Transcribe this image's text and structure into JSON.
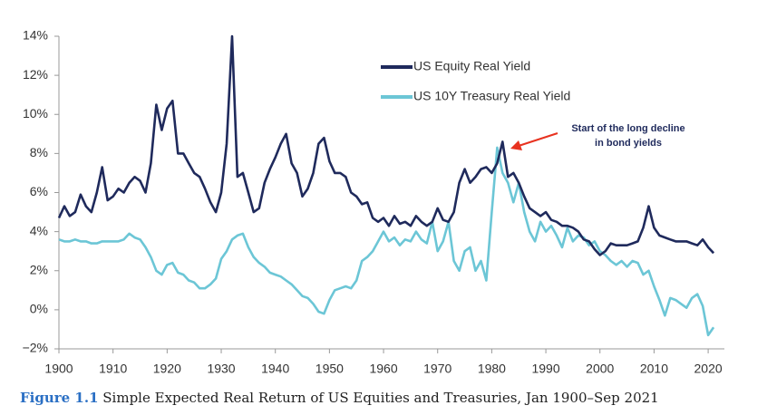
{
  "chart_data": {
    "type": "line",
    "x": [
      1900,
      1901,
      1902,
      1903,
      1904,
      1905,
      1906,
      1907,
      1908,
      1909,
      1910,
      1911,
      1912,
      1913,
      1914,
      1915,
      1916,
      1917,
      1918,
      1919,
      1920,
      1921,
      1922,
      1923,
      1924,
      1925,
      1926,
      1927,
      1928,
      1929,
      1930,
      1931,
      1932,
      1933,
      1934,
      1935,
      1936,
      1937,
      1938,
      1939,
      1940,
      1941,
      1942,
      1943,
      1944,
      1945,
      1946,
      1947,
      1948,
      1949,
      1950,
      1951,
      1952,
      1953,
      1954,
      1955,
      1956,
      1957,
      1958,
      1959,
      1960,
      1961,
      1962,
      1963,
      1964,
      1965,
      1966,
      1967,
      1968,
      1969,
      1970,
      1971,
      1972,
      1973,
      1974,
      1975,
      1976,
      1977,
      1978,
      1979,
      1980,
      1981,
      1982,
      1983,
      1984,
      1985,
      1986,
      1987,
      1988,
      1989,
      1990,
      1991,
      1992,
      1993,
      1994,
      1995,
      1996,
      1997,
      1998,
      1999,
      2000,
      2001,
      2002,
      2003,
      2004,
      2005,
      2006,
      2007,
      2008,
      2009,
      2010,
      2011,
      2012,
      2013,
      2014,
      2015,
      2016,
      2017,
      2018,
      2019,
      2020,
      2021
    ],
    "series": [
      {
        "name": "US Equity Real Yield",
        "color": "#1f2a5c",
        "values": [
          4.7,
          5.3,
          4.8,
          5.0,
          5.9,
          5.3,
          5.0,
          6.0,
          7.3,
          5.6,
          5.8,
          6.2,
          6.0,
          6.5,
          6.8,
          6.6,
          6.0,
          7.5,
          10.5,
          9.2,
          10.3,
          10.7,
          8.0,
          8.0,
          7.5,
          7.0,
          6.8,
          6.2,
          5.5,
          5.0,
          6.0,
          8.5,
          14.0,
          6.8,
          7.0,
          6.0,
          5.0,
          5.2,
          6.5,
          7.2,
          7.8,
          8.5,
          9.0,
          7.5,
          7.0,
          5.8,
          6.2,
          7.0,
          8.5,
          8.8,
          7.6,
          7.0,
          7.0,
          6.8,
          6.0,
          5.8,
          5.4,
          5.5,
          4.7,
          4.5,
          4.7,
          4.3,
          4.8,
          4.4,
          4.5,
          4.3,
          4.8,
          4.5,
          4.3,
          4.5,
          5.2,
          4.6,
          4.5,
          5.0,
          6.5,
          7.2,
          6.5,
          6.8,
          7.2,
          7.3,
          7.0,
          7.5,
          8.6,
          6.8,
          7.0,
          6.5,
          5.8,
          5.2,
          5.0,
          4.8,
          5.0,
          4.6,
          4.5,
          4.3,
          4.3,
          4.2,
          4.0,
          3.6,
          3.5,
          3.1,
          2.8,
          3.0,
          3.4,
          3.3,
          3.3,
          3.3,
          3.4,
          3.5,
          4.2,
          5.3,
          4.2,
          3.8,
          3.7,
          3.6,
          3.5,
          3.5,
          3.5,
          3.4,
          3.3,
          3.6,
          3.2,
          2.9
        ]
      },
      {
        "name": "US 10Y Treasury Real Yield",
        "color": "#6cc6d6",
        "values": [
          3.6,
          3.5,
          3.5,
          3.6,
          3.5,
          3.5,
          3.4,
          3.4,
          3.5,
          3.5,
          3.5,
          3.5,
          3.6,
          3.9,
          3.7,
          3.6,
          3.2,
          2.7,
          2.0,
          1.8,
          2.3,
          2.4,
          1.9,
          1.8,
          1.5,
          1.4,
          1.1,
          1.1,
          1.3,
          1.6,
          2.6,
          3.0,
          3.6,
          3.8,
          3.9,
          3.2,
          2.7,
          2.4,
          2.2,
          1.9,
          1.8,
          1.7,
          1.5,
          1.3,
          1.0,
          0.7,
          0.6,
          0.3,
          -0.1,
          -0.2,
          0.5,
          1.0,
          1.1,
          1.2,
          1.1,
          1.5,
          2.5,
          2.7,
          3.0,
          3.5,
          4.0,
          3.5,
          3.7,
          3.3,
          3.6,
          3.5,
          4.0,
          3.6,
          3.4,
          4.5,
          3.0,
          3.5,
          4.5,
          2.5,
          2.0,
          3.0,
          3.2,
          2.0,
          2.5,
          1.5,
          5.0,
          8.3,
          7.0,
          6.5,
          5.5,
          6.5,
          5.0,
          4.0,
          3.5,
          4.5,
          4.0,
          4.3,
          3.8,
          3.2,
          4.2,
          3.5,
          3.8,
          3.7,
          3.3,
          3.5,
          3.0,
          2.8,
          2.5,
          2.3,
          2.5,
          2.2,
          2.5,
          2.4,
          1.8,
          2.0,
          1.2,
          0.5,
          -0.3,
          0.6,
          0.5,
          0.3,
          0.1,
          0.6,
          0.8,
          0.2,
          -1.3,
          -0.9
        ]
      }
    ],
    "xlim": [
      1900,
      2023
    ],
    "xticks": [
      1900,
      1910,
      1920,
      1930,
      1940,
      1950,
      1960,
      1970,
      1980,
      1990,
      2000,
      2010,
      2020
    ],
    "ylim": [
      -2,
      14
    ],
    "yticks": [
      {
        "value": -2,
        "label": "−2%"
      },
      {
        "value": 0,
        "label": "0%"
      },
      {
        "value": 2,
        "label": "2%"
      },
      {
        "value": 4,
        "label": "4%"
      },
      {
        "value": 6,
        "label": "6%"
      },
      {
        "value": 8,
        "label": "8%"
      },
      {
        "value": 10,
        "label": "10%"
      },
      {
        "value": 12,
        "label": "12%"
      },
      {
        "value": 14,
        "label": "14%"
      }
    ],
    "grid": false,
    "legend": "upper-center",
    "annotation": [
      "Start of the long decline",
      "in bond yields"
    ],
    "caption_label": "Figure 1.1",
    "caption": " Simple Expected Real Return of US Equities and Treasuries, Jan 1900–Sep 2021"
  }
}
